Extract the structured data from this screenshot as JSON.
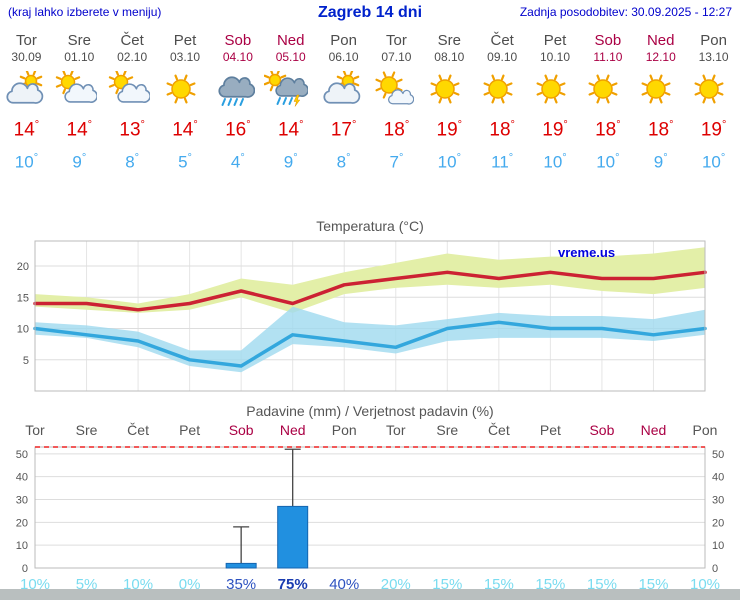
{
  "header": {
    "left_note": "(kraj lahko izberete v meniju)",
    "title": "Zagreb 14 dni",
    "updated": "Zadnja posodobitev: 30.09.2025 - 12:27"
  },
  "colors": {
    "accent_blue": "#0000cc",
    "weekday": "#4d4d4d",
    "weekend": "#aa0044",
    "temp_max_text": "#dd0000",
    "temp_min_text": "#44aaee",
    "max_line": "#cc2233",
    "max_band": "#e3efa8",
    "min_line": "#33a7dd",
    "min_band": "#9fd9ef",
    "bar_fill": "#2190e0",
    "bar_stroke": "#1565b0",
    "prob_low": "#7adcf0",
    "prob_mid": "#2d52c0",
    "prob_high": "#1a3cb0",
    "grid": "#dddddd",
    "border": "#bbbbbb",
    "axis_text": "#555555",
    "dashed_line": "#ee2222",
    "whisker": "#444444"
  },
  "days": [
    {
      "name": "Tor",
      "date": "30.09",
      "weekend": false,
      "icon": "cloudy",
      "tmax": "14",
      "tmin": "10"
    },
    {
      "name": "Sre",
      "date": "01.10",
      "weekend": false,
      "icon": "partly-cloudy",
      "tmax": "14",
      "tmin": "9"
    },
    {
      "name": "Čet",
      "date": "02.10",
      "weekend": false,
      "icon": "partly-cloudy",
      "tmax": "13",
      "tmin": "8"
    },
    {
      "name": "Pet",
      "date": "03.10",
      "weekend": false,
      "icon": "sun",
      "tmax": "14",
      "tmin": "5"
    },
    {
      "name": "Sob",
      "date": "04.10",
      "weekend": true,
      "icon": "rain",
      "tmax": "16",
      "tmin": "4"
    },
    {
      "name": "Ned",
      "date": "05.10",
      "weekend": true,
      "icon": "rain-sun",
      "tmax": "14",
      "tmin": "9"
    },
    {
      "name": "Pon",
      "date": "06.10",
      "weekend": false,
      "icon": "cloudy",
      "tmax": "17",
      "tmin": "8"
    },
    {
      "name": "Tor",
      "date": "07.10",
      "weekend": false,
      "icon": "mostly-sunny",
      "tmax": "18",
      "tmin": "7"
    },
    {
      "name": "Sre",
      "date": "08.10",
      "weekend": false,
      "icon": "sun",
      "tmax": "19",
      "tmin": "10"
    },
    {
      "name": "Čet",
      "date": "09.10",
      "weekend": false,
      "icon": "sun",
      "tmax": "18",
      "tmin": "11"
    },
    {
      "name": "Pet",
      "date": "10.10",
      "weekend": false,
      "icon": "sun",
      "tmax": "19",
      "tmin": "10"
    },
    {
      "name": "Sob",
      "date": "11.10",
      "weekend": true,
      "icon": "sun",
      "tmax": "18",
      "tmin": "10"
    },
    {
      "name": "Ned",
      "date": "12.10",
      "weekend": true,
      "icon": "sun",
      "tmax": "18",
      "tmin": "9"
    },
    {
      "name": "Pon",
      "date": "13.10",
      "weekend": false,
      "icon": "sun",
      "tmax": "19",
      "tmin": "10"
    }
  ],
  "chart_data": [
    {
      "type": "line",
      "title": "Temperatura (°C)",
      "watermark": "vreme.us",
      "ylim": [
        0,
        24
      ],
      "yticks": [
        5,
        10,
        15,
        20
      ],
      "x_count": 14,
      "series": [
        {
          "name": "temp-max",
          "values": [
            14,
            14,
            13,
            14,
            16,
            14,
            17,
            18,
            19,
            18,
            19,
            18,
            18,
            19
          ]
        },
        {
          "name": "temp-max-band-high",
          "values": [
            15.5,
            15,
            14,
            15.5,
            18,
            17,
            19,
            20.5,
            22,
            21,
            21.5,
            21.5,
            22,
            23
          ]
        },
        {
          "name": "temp-max-band-low",
          "values": [
            13.5,
            13,
            12.5,
            13,
            15,
            12.5,
            15.5,
            16.5,
            17,
            16.5,
            17,
            16,
            15.5,
            16.5
          ]
        },
        {
          "name": "temp-min",
          "values": [
            10,
            9,
            8,
            5,
            4,
            9,
            8,
            7,
            10,
            11,
            10,
            10,
            9,
            10
          ]
        },
        {
          "name": "temp-min-band-high",
          "values": [
            11,
            10.5,
            9.5,
            6.5,
            6.5,
            13.5,
            11,
            10.5,
            11.5,
            12.5,
            12,
            12,
            11.5,
            13
          ]
        },
        {
          "name": "temp-min-band-low",
          "values": [
            9,
            8.5,
            7,
            4,
            3,
            7.5,
            7,
            6,
            8,
            8.5,
            8.5,
            8.5,
            8,
            9
          ]
        }
      ]
    },
    {
      "type": "bar",
      "title": "Padavine (mm) / Verjetnost padavin (%)",
      "x_labels": [
        "Tor",
        "Sre",
        "Čet",
        "Pet",
        "Sob",
        "Ned",
        "Pon",
        "Tor",
        "Sre",
        "Čet",
        "Pet",
        "Sob",
        "Ned",
        "Pon"
      ],
      "weekend_indices": [
        4,
        5,
        11,
        12
      ],
      "ylim": [
        0,
        53
      ],
      "yticks": [
        0,
        10,
        20,
        30,
        40,
        50
      ],
      "precip_mm": [
        0,
        0,
        0,
        0,
        2,
        27,
        0,
        0,
        0,
        0,
        0,
        0,
        0,
        0
      ],
      "precip_max_mm": [
        0,
        0,
        0,
        0,
        18,
        52,
        0,
        0,
        0,
        0,
        0,
        0,
        0,
        0
      ],
      "probabilities": [
        "10%",
        "5%",
        "10%",
        "0%",
        "35%",
        "75%",
        "40%",
        "20%",
        "15%",
        "15%",
        "15%",
        "15%",
        "15%",
        "10%"
      ],
      "prob_levels": [
        "low",
        "low",
        "low",
        "low",
        "mid",
        "high",
        "mid",
        "low",
        "low",
        "low",
        "low",
        "low",
        "low",
        "low"
      ]
    }
  ]
}
